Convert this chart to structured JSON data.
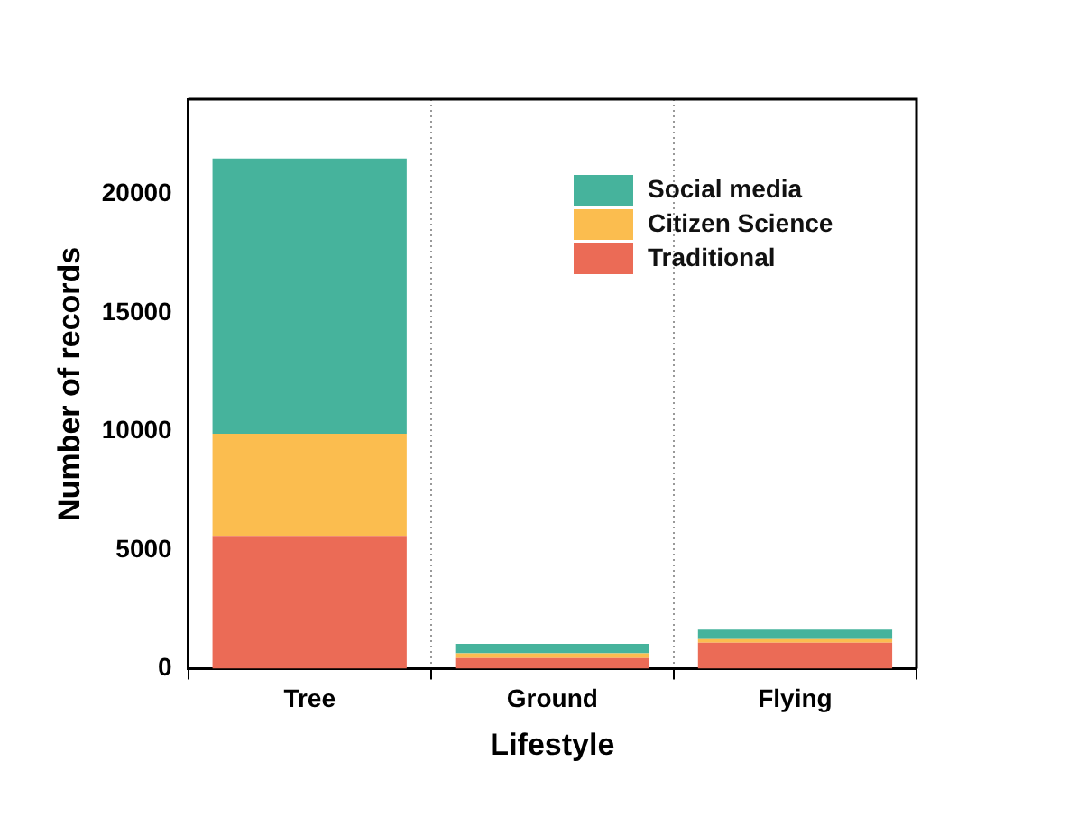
{
  "chart_data": {
    "type": "bar",
    "stacked": true,
    "xlabel": "Lifestyle",
    "ylabel": "Number of records",
    "categories": [
      "Tree",
      "Ground",
      "Flying"
    ],
    "series": [
      {
        "name": "Traditional",
        "color": "#eb6b56",
        "values": [
          5600,
          450,
          1100
        ]
      },
      {
        "name": "Citizen Science",
        "color": "#fbbd4f",
        "values": [
          4300,
          200,
          150
        ]
      },
      {
        "name": "Social media",
        "color": "#46b39c",
        "values": [
          11600,
          400,
          400
        ]
      }
    ],
    "ylim": [
      0,
      24000
    ],
    "yticks": [
      0,
      5000,
      10000,
      15000,
      20000
    ],
    "grid": "x",
    "legend": "top right"
  }
}
